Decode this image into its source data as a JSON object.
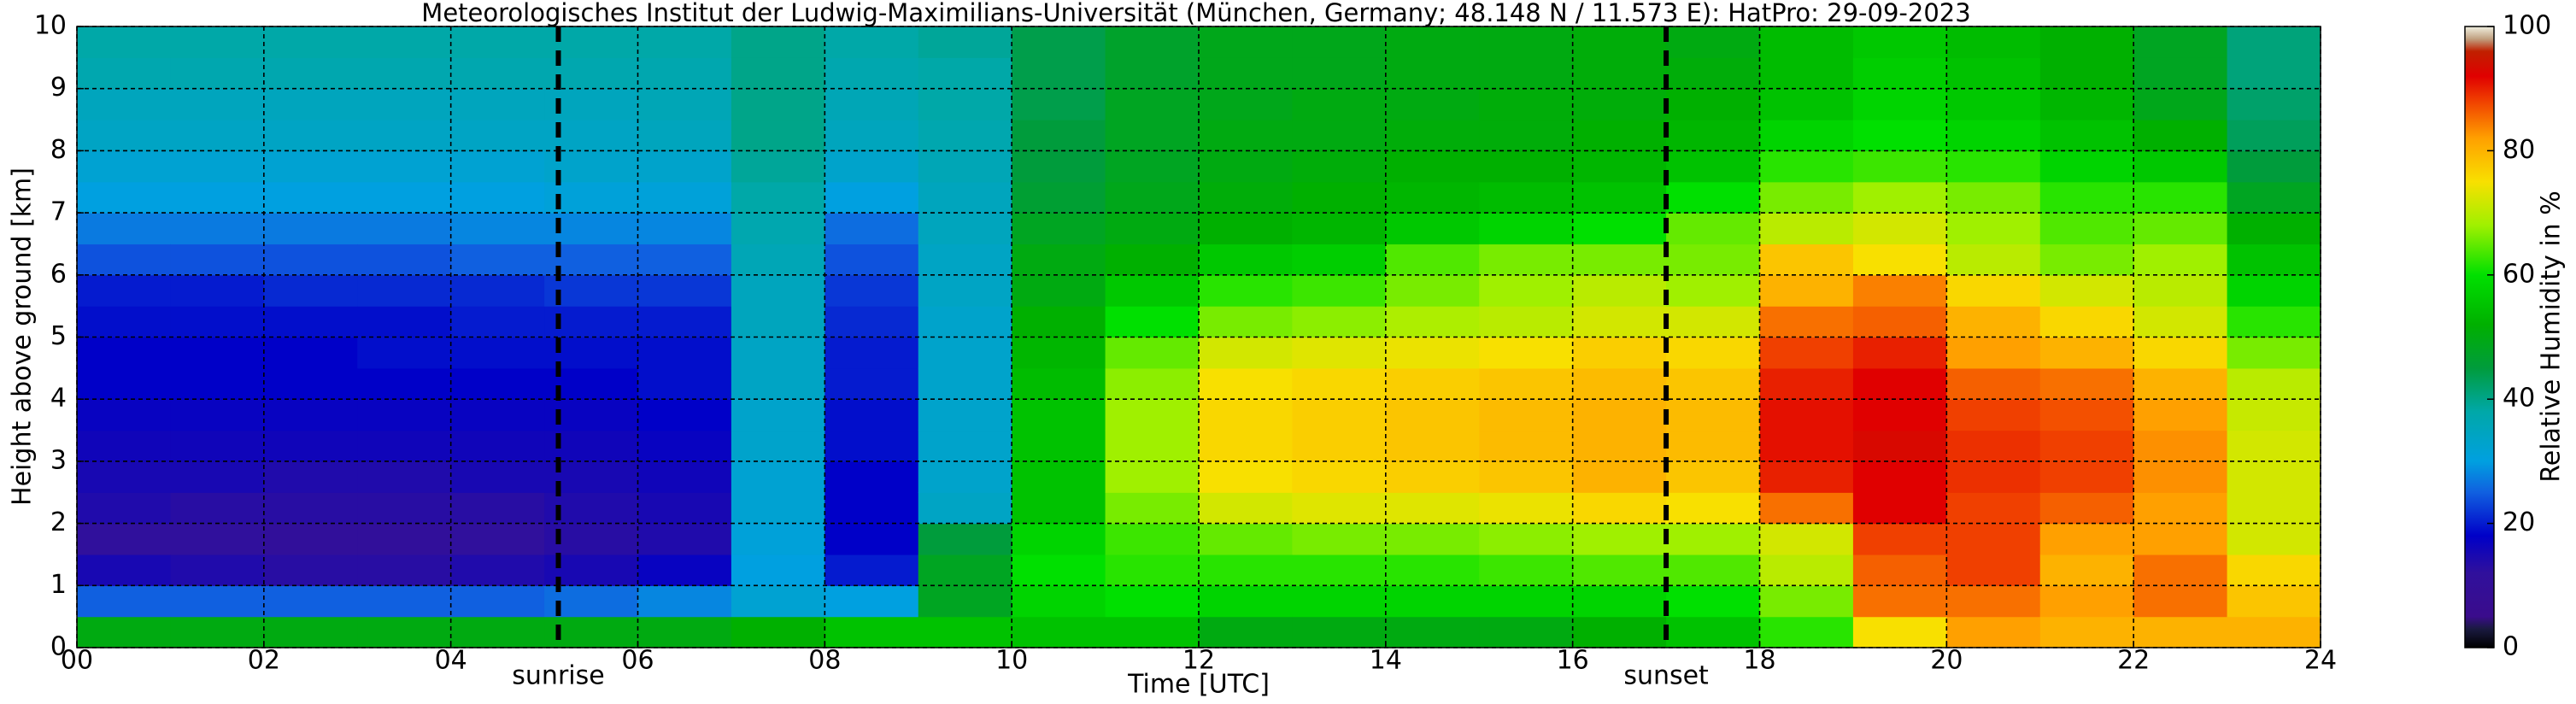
{
  "chart_data": {
    "type": "heatmap",
    "title": "Meteorologisches Institut der Ludwig-Maximilians-Universität (München, Germany; 48.148 N / 11.573 E):    HatPro: 29-09-2023",
    "x_label": "Time [UTC]",
    "y_label": "Height above ground [km]",
    "colorbar_label": "Relative Humidity in %",
    "xlim": [
      0,
      24
    ],
    "xticks": [
      {
        "value": 0,
        "label": "00"
      },
      {
        "value": 2,
        "label": "02"
      },
      {
        "value": 4,
        "label": "04"
      },
      {
        "value": 6,
        "label": "06"
      },
      {
        "value": 8,
        "label": "08"
      },
      10,
      12,
      14,
      16,
      18,
      20,
      22,
      24
    ],
    "ylim": [
      0,
      10
    ],
    "yticks": [
      0,
      1,
      2,
      3,
      4,
      5,
      6,
      7,
      8,
      9,
      10
    ],
    "clim": [
      0,
      100
    ],
    "cticks": [
      0,
      20,
      40,
      60,
      80,
      100
    ],
    "grid": true,
    "annotations": [
      {
        "x": 5.15,
        "text": "sunrise"
      },
      {
        "x": 17,
        "text": "sunset"
      }
    ],
    "colorscale": [
      [
        0,
        "#000000"
      ],
      [
        3,
        "#1a1a40"
      ],
      [
        5,
        "#3a0c8c"
      ],
      [
        12,
        "#30109c"
      ],
      [
        18,
        "#0000c8"
      ],
      [
        25,
        "#1060e0"
      ],
      [
        30,
        "#00a0e0"
      ],
      [
        38,
        "#00a8a8"
      ],
      [
        45,
        "#009c3c"
      ],
      [
        52,
        "#00b000"
      ],
      [
        60,
        "#00e000"
      ],
      [
        68,
        "#a0f000"
      ],
      [
        75,
        "#f8e000"
      ],
      [
        82,
        "#ffa000"
      ],
      [
        88,
        "#f04000"
      ],
      [
        92,
        "#e00000"
      ],
      [
        96,
        "#c02000"
      ],
      [
        98,
        "#c0a080"
      ],
      [
        100,
        "#f0f0e0"
      ]
    ],
    "x": [
      0.5,
      1.5,
      2.5,
      3.5,
      4.5,
      5.5,
      6.5,
      7.5,
      8.5,
      9.5,
      10.5,
      11.5,
      12.5,
      13.5,
      14.5,
      15.5,
      16.5,
      17.5,
      18.5,
      19.5,
      20.5,
      21.5,
      22.5,
      23.5
    ],
    "y": [
      0.25,
      0.75,
      1.25,
      1.75,
      2.25,
      2.75,
      3.25,
      3.75,
      4.25,
      4.75,
      5.25,
      5.75,
      6.25,
      6.75,
      7.25,
      7.75,
      8.25,
      8.75,
      9.25,
      9.75
    ],
    "z": [
      [
        50,
        25,
        15,
        12,
        14,
        15,
        16,
        17,
        18,
        18,
        19,
        20,
        24,
        27,
        30,
        32,
        34,
        35,
        37,
        38
      ],
      [
        50,
        25,
        14,
        12,
        13,
        15,
        16,
        17,
        18,
        18,
        19,
        20,
        24,
        27,
        30,
        32,
        34,
        35,
        37,
        38
      ],
      [
        50,
        25,
        13,
        11,
        13,
        14,
        16,
        17,
        18,
        18,
        19,
        21,
        24,
        27,
        30,
        32,
        34,
        35,
        37,
        38
      ],
      [
        50,
        25,
        13,
        11,
        13,
        14,
        16,
        17,
        18,
        19,
        19,
        21,
        24,
        27,
        30,
        32,
        34,
        35,
        37,
        38
      ],
      [
        50,
        25,
        14,
        12,
        13,
        15,
        16,
        17,
        18,
        19,
        20,
        21,
        25,
        28,
        30,
        32,
        34,
        35,
        37,
        38
      ],
      [
        50,
        26,
        15,
        13,
        14,
        15,
        16,
        17,
        18,
        19,
        20,
        22,
        25,
        28,
        31,
        33,
        34,
        35,
        37,
        38
      ],
      [
        50,
        28,
        17,
        14,
        15,
        16,
        17,
        18,
        19,
        19,
        20,
        22,
        25,
        28,
        31,
        33,
        35,
        36,
        37,
        38
      ],
      [
        52,
        32,
        30,
        31,
        32,
        32,
        33,
        33,
        34,
        34,
        35,
        35,
        36,
        37,
        38,
        39,
        40,
        40,
        40,
        40
      ],
      [
        55,
        30,
        20,
        18,
        18,
        18,
        19,
        19,
        20,
        20,
        21,
        22,
        24,
        26,
        30,
        33,
        35,
        36,
        37,
        38
      ],
      [
        55,
        48,
        48,
        45,
        34,
        33,
        33,
        33,
        33,
        33,
        33,
        34,
        34,
        35,
        35,
        36,
        37,
        38,
        38,
        39
      ],
      [
        55,
        58,
        60,
        58,
        55,
        55,
        55,
        55,
        54,
        53,
        52,
        50,
        50,
        48,
        46,
        45,
        45,
        44,
        44,
        44
      ],
      [
        55,
        60,
        62,
        63,
        66,
        68,
        68,
        68,
        67,
        65,
        60,
        56,
        52,
        50,
        49,
        48,
        48,
        48,
        47,
        47
      ],
      [
        50,
        58,
        62,
        65,
        72,
        75,
        76,
        76,
        75,
        72,
        66,
        62,
        56,
        52,
        51,
        50,
        50,
        49,
        49,
        49
      ],
      [
        50,
        58,
        62,
        66,
        73,
        76,
        77,
        77,
        76,
        73,
        67,
        63,
        57,
        53,
        52,
        51,
        50,
        50,
        49,
        49
      ],
      [
        50,
        58,
        62,
        66,
        73,
        77,
        78,
        78,
        77,
        74,
        69,
        66,
        64,
        56,
        53,
        52,
        51,
        50,
        50,
        50
      ],
      [
        50,
        58,
        63,
        67,
        74,
        78,
        79,
        79,
        78,
        75,
        70,
        68,
        66,
        58,
        54,
        52,
        51,
        51,
        50,
        50
      ],
      [
        52,
        58,
        64,
        68,
        76,
        80,
        80,
        80,
        79,
        77,
        72,
        70,
        66,
        60,
        55,
        53,
        52,
        51,
        51,
        51
      ],
      [
        55,
        60,
        64,
        68,
        75,
        78,
        79,
        79,
        78,
        76,
        72,
        68,
        66,
        65,
        60,
        55,
        53,
        52,
        51,
        50
      ],
      [
        62,
        66,
        70,
        72,
        85,
        90,
        91,
        91,
        90,
        88,
        85,
        80,
        78,
        70,
        66,
        62,
        58,
        55,
        54,
        54
      ],
      [
        75,
        85,
        86,
        88,
        92,
        92,
        93,
        92,
        92,
        90,
        86,
        84,
        75,
        72,
        68,
        63,
        60,
        58,
        57,
        56
      ],
      [
        82,
        85,
        88,
        88,
        88,
        89,
        89,
        88,
        86,
        82,
        80,
        76,
        70,
        68,
        66,
        62,
        58,
        56,
        55,
        54
      ],
      [
        80,
        82,
        80,
        82,
        86,
        88,
        88,
        87,
        85,
        80,
        76,
        72,
        66,
        64,
        62,
        58,
        55,
        53,
        52,
        52
      ],
      [
        80,
        85,
        85,
        82,
        82,
        83,
        83,
        82,
        80,
        76,
        72,
        70,
        68,
        65,
        62,
        56,
        52,
        49,
        48,
        48
      ],
      [
        80,
        78,
        76,
        72,
        72,
        72,
        72,
        71,
        70,
        66,
        62,
        58,
        55,
        52,
        48,
        45,
        43,
        42,
        41,
        41
      ]
    ]
  }
}
